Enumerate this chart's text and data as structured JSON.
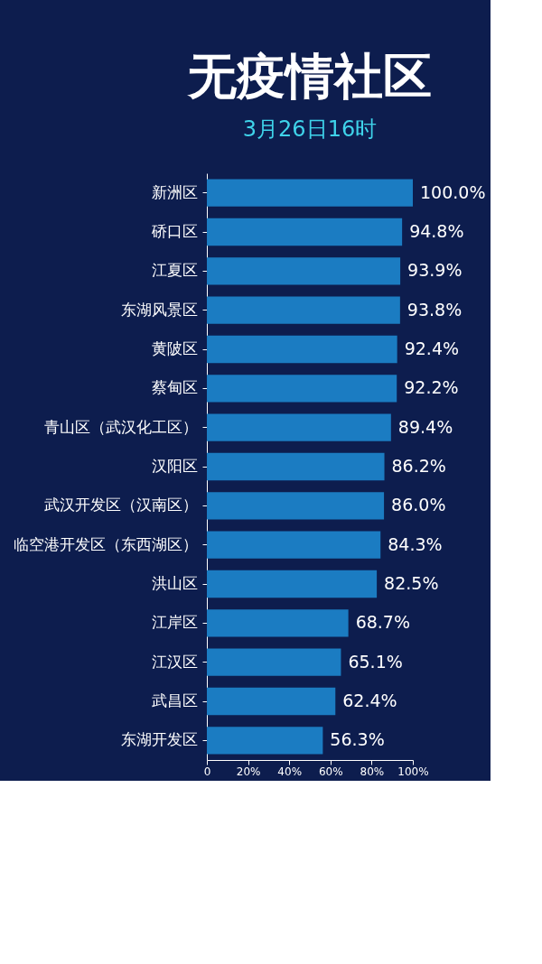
{
  "chart_data": {
    "type": "bar",
    "orientation": "horizontal",
    "title": "无疫情社区",
    "subtitle": "3月26日16时",
    "categories": [
      "新洲区",
      "硚口区",
      "江夏区",
      "东湖风景区",
      "黄陂区",
      "蔡甸区",
      "青山区（武汉化工区）",
      "汉阳区",
      "武汉开发区（汉南区）",
      "临空港开发区（东西湖区）",
      "洪山区",
      "江岸区",
      "江汉区",
      "武昌区",
      "东湖开发区"
    ],
    "values": [
      100.0,
      94.8,
      93.9,
      93.8,
      92.4,
      92.2,
      89.4,
      86.2,
      86.0,
      84.3,
      82.5,
      68.7,
      65.1,
      62.4,
      56.3
    ],
    "value_labels": [
      "100.0%",
      "94.8%",
      "93.9%",
      "93.8%",
      "92.4%",
      "92.2%",
      "89.4%",
      "86.2%",
      "86.0%",
      "84.3%",
      "82.5%",
      "68.7%",
      "65.1%",
      "62.4%",
      "56.3%"
    ],
    "color": "#1b7cc2",
    "xlim": [
      0,
      100
    ],
    "xticks": [
      0,
      {
        "value": 20,
        "label": "20%"
      },
      {
        "value": 40,
        "label": "40%"
      },
      {
        "value": 60,
        "label": "60%"
      },
      {
        "value": 80,
        "label": "80%"
      },
      {
        "value": 100,
        "label": "100%"
      }
    ],
    "grid": false
  }
}
